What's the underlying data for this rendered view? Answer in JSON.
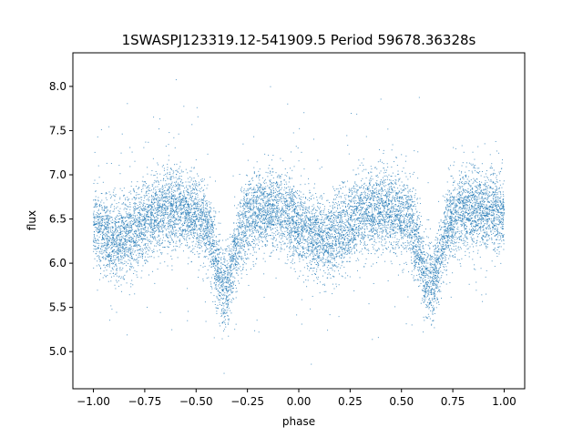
{
  "chart_data": {
    "type": "scatter",
    "title": "1SWASPJ123319.12-541909.5 Period 59678.36328s",
    "xlabel": "phase",
    "ylabel": "flux",
    "xlim": [
      -1.1,
      1.1
    ],
    "ylim": [
      4.58,
      8.38
    ],
    "x_ticks": [
      -1.0,
      -0.75,
      -0.5,
      -0.25,
      0.0,
      0.25,
      0.5,
      0.75,
      1.0
    ],
    "x_tick_labels": [
      "−1.00",
      "−0.75",
      "−0.50",
      "−0.25",
      "0.00",
      "0.25",
      "0.50",
      "0.75",
      "1.00"
    ],
    "y_ticks": [
      5.0,
      5.5,
      6.0,
      6.5,
      7.0,
      7.5,
      8.0
    ],
    "y_tick_labels": [
      "5.0",
      "5.5",
      "6.0",
      "6.5",
      "7.0",
      "7.5",
      "8.0"
    ],
    "grid": false,
    "legend": "none",
    "marker_color": "#1f77b4",
    "series": [
      {
        "phase_range": [
          -1.0,
          1.0
        ],
        "points_per_unit_phase": 6000,
        "baseline_flux": 6.5,
        "scatter_std": 0.22,
        "hump_flux": 6.62,
        "hump_phases": [
          -0.62,
          -0.12,
          0.38,
          0.88
        ],
        "primary_eclipse_phase": -0.36,
        "primary_eclipse_phase_2": 0.64,
        "primary_eclipse_min_flux": 5.75,
        "secondary_dip_phases": [
          -0.88,
          0.12
        ],
        "secondary_dip_min_flux": 6.28
      }
    ]
  }
}
